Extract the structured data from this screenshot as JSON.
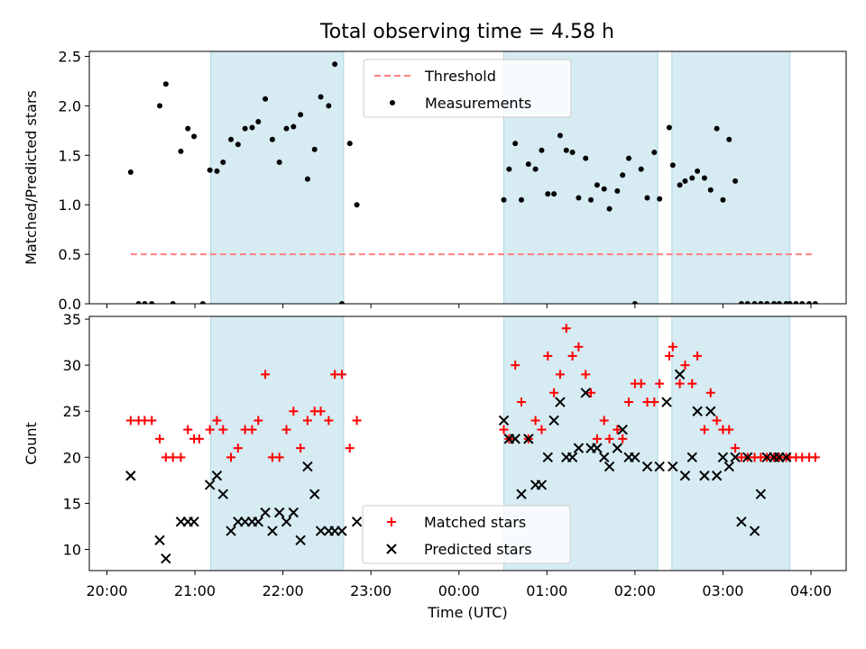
{
  "title": "Total observing time = 4.58 h",
  "colors": {
    "shade": "#add8e6",
    "threshold": "#ff8080",
    "measurement": "#000000",
    "matched": "#ff0000",
    "predicted": "#000000"
  },
  "chart_data": [
    {
      "type": "scatter",
      "panel": "top",
      "ylabel": "Matched/Predicted stars",
      "xlim": [
        -0.2,
        8.4
      ],
      "ylim": [
        0,
        2.55
      ],
      "yticks": [
        "0.0",
        "0.5",
        "1.0",
        "1.5",
        "2.0",
        "2.5"
      ],
      "ytick_values": [
        0,
        0.5,
        1.0,
        1.5,
        2.0,
        2.5
      ],
      "legend": {
        "location": "top-center",
        "entries": [
          "Threshold",
          "Measurements"
        ]
      },
      "shaded_intervals": [
        [
          1.18,
          2.69
        ],
        [
          4.51,
          6.26
        ],
        [
          6.42,
          7.76
        ]
      ],
      "threshold": {
        "name": "Threshold",
        "y": 0.5,
        "x": [
          0.27,
          8.05
        ]
      },
      "series": [
        {
          "name": "Measurements",
          "marker": "dot",
          "x": [
            0.27,
            0.36,
            0.43,
            0.51,
            0.6,
            0.67,
            0.75,
            0.84,
            0.92,
            0.99,
            1.09,
            1.17,
            1.25,
            1.32,
            1.41,
            1.49,
            1.57,
            1.65,
            1.72,
            1.8,
            1.88,
            1.96,
            2.04,
            2.12,
            2.2,
            2.28,
            2.36,
            2.43,
            2.52,
            2.59,
            2.67,
            2.76,
            2.84,
            4.51,
            4.57,
            4.64,
            4.71,
            4.79,
            4.87,
            4.94,
            5.01,
            5.08,
            5.15,
            5.22,
            5.29,
            5.36,
            5.44,
            5.5,
            5.57,
            5.65,
            5.71,
            5.8,
            5.86,
            5.93,
            6.0,
            6.07,
            6.14,
            6.22,
            6.28,
            6.39,
            6.43,
            6.51,
            6.57,
            6.65,
            6.71,
            6.79,
            6.86,
            6.93,
            7.0,
            7.07,
            7.14,
            7.21,
            7.28,
            7.36,
            7.43,
            7.5,
            7.58,
            7.64,
            7.72,
            7.76,
            7.83,
            7.9,
            7.98,
            8.05
          ],
          "y": [
            1.33,
            0,
            0,
            0,
            2.0,
            2.22,
            0,
            1.54,
            1.77,
            1.69,
            0,
            1.35,
            1.34,
            1.43,
            1.66,
            1.61,
            1.77,
            1.78,
            1.84,
            2.07,
            1.66,
            1.43,
            1.77,
            1.79,
            1.91,
            1.26,
            1.56,
            2.09,
            2.0,
            2.42,
            0,
            1.62,
            1.0,
            1.05,
            1.36,
            1.62,
            1.05,
            1.41,
            1.36,
            1.55,
            1.11,
            1.11,
            1.7,
            1.55,
            1.53,
            1.07,
            1.47,
            1.05,
            1.2,
            1.16,
            0.96,
            1.14,
            1.3,
            1.47,
            0,
            1.36,
            1.07,
            1.53,
            1.06,
            1.78,
            1.4,
            1.2,
            1.24,
            1.27,
            1.34,
            1.27,
            1.15,
            1.77,
            1.05,
            1.66,
            1.24,
            0,
            0,
            0,
            0,
            0,
            0,
            0,
            0,
            0,
            0,
            0,
            0,
            0
          ]
        }
      ]
    },
    {
      "type": "scatter",
      "panel": "bottom",
      "xlabel": "Time (UTC)",
      "ylabel": "Count",
      "xlim": [
        -0.2,
        8.4
      ],
      "ylim": [
        7.7,
        35.3
      ],
      "yticks": [
        "10",
        "15",
        "20",
        "25",
        "30",
        "35"
      ],
      "ytick_values": [
        10,
        15,
        20,
        25,
        30,
        35
      ],
      "xticks": [
        "20:00",
        "21:00",
        "22:00",
        "23:00",
        "00:00",
        "01:00",
        "02:00",
        "03:00",
        "04:00"
      ],
      "xtick_values": [
        0,
        1,
        2,
        3,
        4,
        5,
        6,
        7,
        8
      ],
      "legend": {
        "location": "bottom-center",
        "entries": [
          "Matched stars",
          "Predicted stars"
        ]
      },
      "shaded_intervals": [
        [
          1.18,
          2.69
        ],
        [
          4.51,
          6.26
        ],
        [
          6.42,
          7.76
        ]
      ],
      "series": [
        {
          "name": "Matched stars",
          "marker": "plus",
          "x": [
            0.27,
            0.36,
            0.43,
            0.51,
            0.6,
            0.67,
            0.75,
            0.84,
            0.92,
            0.99,
            1.05,
            1.17,
            1.25,
            1.32,
            1.41,
            1.49,
            1.57,
            1.65,
            1.72,
            1.8,
            1.88,
            1.96,
            2.04,
            2.12,
            2.2,
            2.28,
            2.36,
            2.43,
            2.52,
            2.59,
            2.67,
            2.76,
            2.84,
            4.51,
            4.57,
            4.64,
            4.71,
            4.79,
            4.87,
            4.94,
            5.01,
            5.08,
            5.15,
            5.22,
            5.29,
            5.36,
            5.44,
            5.5,
            5.57,
            5.65,
            5.71,
            5.8,
            5.86,
            5.93,
            6.0,
            6.07,
            6.14,
            6.22,
            6.28,
            6.39,
            6.43,
            6.51,
            6.57,
            6.65,
            6.71,
            6.79,
            6.86,
            6.93,
            7.0,
            7.07,
            7.14,
            7.21,
            7.28,
            7.36,
            7.43,
            7.5,
            7.58,
            7.64,
            7.72,
            7.76,
            7.83,
            7.9,
            7.98,
            8.05
          ],
          "y": [
            24,
            24,
            24,
            24,
            22,
            20,
            20,
            20,
            23,
            22,
            22,
            23,
            24,
            23,
            20,
            21,
            23,
            23,
            24,
            29,
            20,
            20,
            23,
            25,
            21,
            24,
            25,
            25,
            24,
            29,
            29,
            21,
            24,
            23,
            22,
            30,
            26,
            22,
            24,
            23,
            31,
            27,
            29,
            34,
            31,
            32,
            29,
            27,
            22,
            24,
            22,
            23,
            22,
            26,
            28,
            28,
            26,
            26,
            28,
            31,
            32,
            28,
            30,
            28,
            31,
            23,
            27,
            24,
            23,
            23,
            21,
            20,
            20,
            20,
            20,
            20,
            20,
            20,
            20,
            20,
            20,
            20,
            20,
            20
          ]
        },
        {
          "name": "Predicted stars",
          "marker": "x",
          "x": [
            0.27,
            0.6,
            0.67,
            0.84,
            0.92,
            0.99,
            1.17,
            1.25,
            1.32,
            1.41,
            1.49,
            1.57,
            1.65,
            1.72,
            1.8,
            1.88,
            1.96,
            2.04,
            2.12,
            2.2,
            2.28,
            2.36,
            2.43,
            2.52,
            2.59,
            2.67,
            2.84,
            4.51,
            4.57,
            4.64,
            4.71,
            4.79,
            4.87,
            4.94,
            5.01,
            5.08,
            5.15,
            5.22,
            5.29,
            5.36,
            5.44,
            5.5,
            5.57,
            5.65,
            5.71,
            5.8,
            5.86,
            5.93,
            6.0,
            6.14,
            6.28,
            6.36,
            6.43,
            6.51,
            6.57,
            6.65,
            6.71,
            6.79,
            6.86,
            6.93,
            7.0,
            7.07,
            7.14,
            7.21,
            7.28,
            7.36,
            7.43,
            7.5,
            7.58,
            7.64,
            7.72
          ],
          "y": [
            18,
            11,
            9,
            13,
            13,
            13,
            17,
            18,
            16,
            12,
            13,
            13,
            13,
            13,
            14,
            12,
            14,
            13,
            14,
            11,
            19,
            16,
            12,
            12,
            12,
            12,
            13,
            24,
            22,
            22,
            16,
            22,
            17,
            17,
            20,
            24,
            26,
            20,
            20,
            21,
            27,
            21,
            21,
            20,
            19,
            21,
            23,
            20,
            20,
            19,
            19,
            26,
            19,
            29,
            18,
            20,
            25,
            18,
            25,
            18,
            20,
            19,
            20,
            13,
            20,
            12,
            16,
            20,
            20,
            20,
            20
          ]
        }
      ]
    }
  ]
}
